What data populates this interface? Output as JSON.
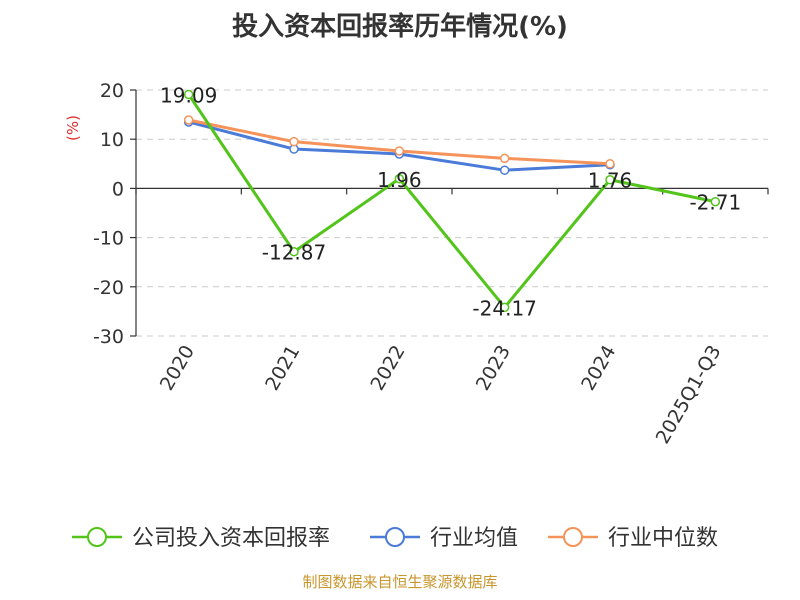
{
  "title": "投入资本回报率历年情况(%)",
  "source": "制图数据来自恒生聚源数据库",
  "chart_data": {
    "type": "line",
    "unit_label": "(%)",
    "categories": [
      "2020",
      "2021",
      "2022",
      "2023",
      "2024",
      "2025Q1-Q3"
    ],
    "ylim": [
      -30,
      20
    ],
    "yticks": [
      20,
      10,
      0,
      -10,
      -20,
      -30
    ],
    "grid": true,
    "legend_position": "bottom",
    "series": [
      {
        "name": "公司投入资本回报率",
        "color": "#52c41a",
        "values": [
          19.09,
          -12.87,
          1.96,
          -24.17,
          1.76,
          -2.71
        ],
        "labels": [
          "19.09",
          "-12.87",
          "1.96",
          "-24.17",
          "1.76",
          "-2.71"
        ]
      },
      {
        "name": "行业均值",
        "color": "#4a7bd8",
        "values": [
          13.5,
          8.0,
          7.0,
          3.7,
          4.8,
          null
        ]
      },
      {
        "name": "行业中位数",
        "color": "#f5935a",
        "values": [
          13.9,
          9.5,
          7.6,
          6.1,
          5.0,
          null
        ]
      }
    ]
  }
}
